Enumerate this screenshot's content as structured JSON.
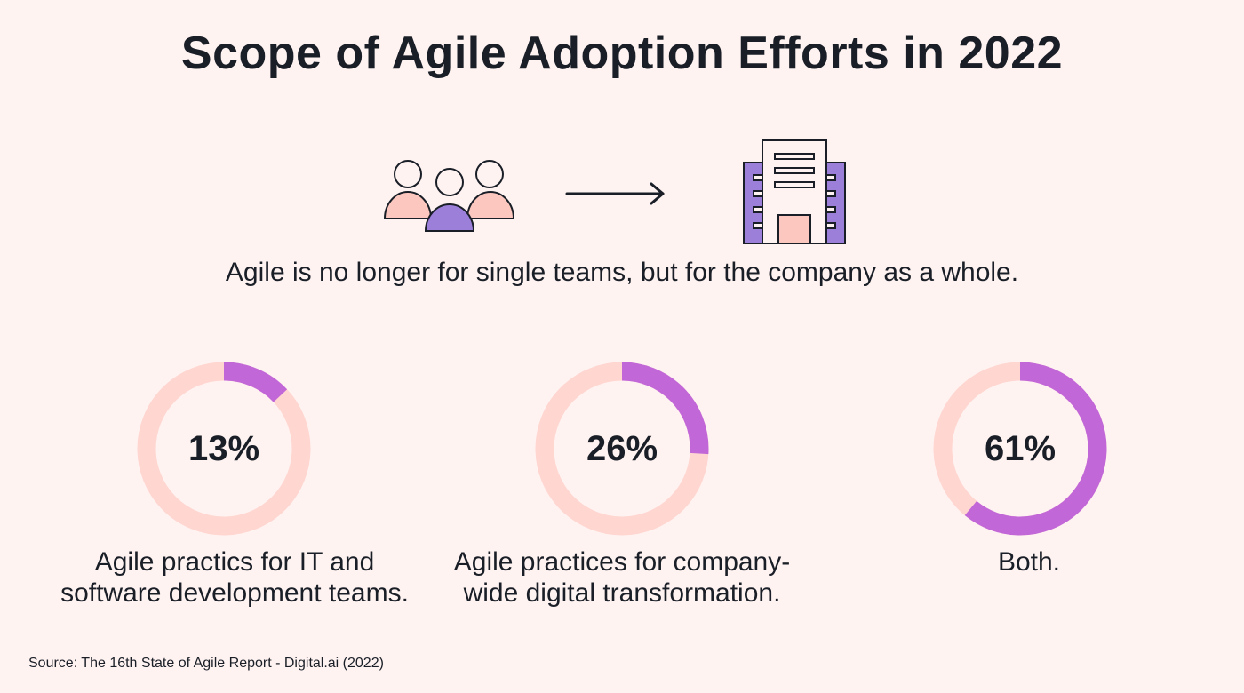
{
  "title": "Scope of Agile Adoption Efforts in 2022",
  "tagline": "Agile is no longer for single teams, but for the company as a whole.",
  "source": "Source: The 16th State of Agile Report - Digital.ai (2022)",
  "icons": [
    "team-icon",
    "arrow-right-icon",
    "building-icon"
  ],
  "colors": {
    "background": "#fff3f2",
    "ring_track": "#ffd6d0",
    "ring_fill": "#c267d8",
    "purple": "#9b7fd9",
    "pink": "#fcc7be",
    "ink": "#1a1f27"
  },
  "chart_data": {
    "type": "pie",
    "title": "Scope of Agile Adoption Efforts in 2022",
    "items": [
      {
        "label": "Agile practics for IT and software development teams.",
        "value": 13,
        "value_label": "13%"
      },
      {
        "label": "Agile practices for company-wide digital transformation.",
        "value": 26,
        "value_label": "26%"
      },
      {
        "label": "Both.",
        "value": 61,
        "value_label": "61%"
      }
    ]
  },
  "captions": [
    [
      "Agile practics for IT and",
      "software development teams."
    ],
    [
      "Agile practices for company-",
      "wide digital transformation."
    ],
    [
      "Both."
    ]
  ]
}
